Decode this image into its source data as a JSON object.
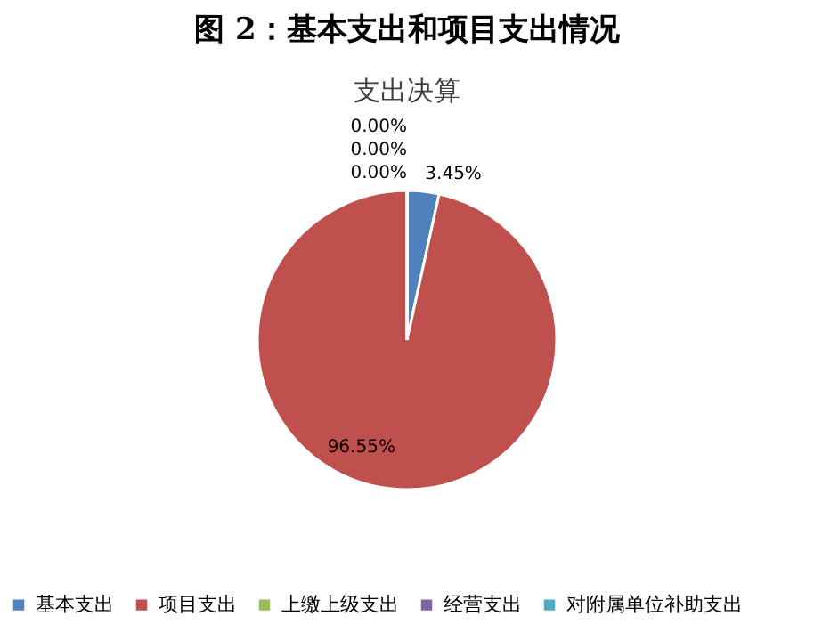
{
  "chart_data": {
    "type": "pie",
    "title": "图 2：基本支出和项目支出情况",
    "subtitle": "支出决算",
    "categories": [
      "基本支出",
      "项目支出",
      "上缴上级支出",
      "经营支出",
      "对附属单位补助支出"
    ],
    "values": [
      3.45,
      96.55,
      0,
      0,
      0
    ],
    "colors": [
      "#4f81bd",
      "#c0504d",
      "#9bbb59",
      "#8064a2",
      "#4bacc6"
    ],
    "value_labels": [
      "3.45%",
      "96.55%",
      "0.00%",
      "0.00%",
      "0.00%"
    ],
    "legend": "bottom"
  }
}
